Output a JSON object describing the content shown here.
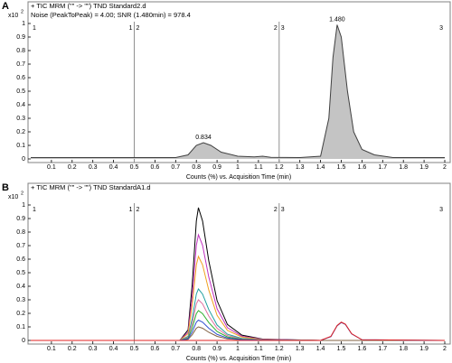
{
  "chart_data": [
    {
      "type": "line",
      "panel_label": "A",
      "title": "+ TIC MRM (\"\" -> \"\") TND Standard2.d",
      "subtitle": "Noise (PeakToPeak) = 4.00; SNR (1.480min) = 978.4",
      "title_color": "#000000",
      "y_scale_label": "x10",
      "y_scale_exponent": 2,
      "xlabel": "Counts (%) vs. Acquisition Time (min)",
      "xlim": [
        0,
        2
      ],
      "ylim": [
        0,
        1
      ],
      "xticks": [
        0.1,
        0.2,
        0.3,
        0.4,
        0.5,
        0.6,
        0.7,
        0.8,
        0.9,
        1,
        1.1,
        1.2,
        1.3,
        1.4,
        1.5,
        1.6,
        1.7,
        1.8,
        1.9,
        2
      ],
      "yticks": [
        0,
        0.1,
        0.2,
        0.3,
        0.4,
        0.5,
        0.6,
        0.7,
        0.8,
        0.9,
        1
      ],
      "segments": [
        {
          "label": "1",
          "range": [
            0,
            0.5
          ]
        },
        {
          "label": "2",
          "range": [
            0.5,
            1.2
          ]
        },
        {
          "label": "3",
          "range": [
            1.2,
            2
          ]
        }
      ],
      "x": [
        0,
        0.7,
        0.76,
        0.8,
        0.834,
        0.87,
        0.92,
        1.0,
        1.08,
        1.12,
        1.16,
        1.3,
        1.4,
        1.44,
        1.46,
        1.48,
        1.5,
        1.53,
        1.56,
        1.6,
        1.66,
        1.75,
        2
      ],
      "series": [
        {
          "color": "#404040",
          "fill": "#c4c4c4",
          "values": [
            0.01,
            0.01,
            0.03,
            0.1,
            0.12,
            0.1,
            0.05,
            0.02,
            0.015,
            0.02,
            0.012,
            0.01,
            0.02,
            0.3,
            0.75,
            0.99,
            0.9,
            0.5,
            0.2,
            0.07,
            0.03,
            0.01,
            0.01
          ]
        }
      ],
      "peak_labels": [
        {
          "x": 0.834,
          "y": 0.12,
          "label": "0.834"
        },
        {
          "x": 1.48,
          "y": 0.99,
          "label": "1.480"
        }
      ]
    },
    {
      "type": "line",
      "panel_label": "B",
      "title": "+ TIC MRM (\"\" -> \"\") TND StandardA1.d",
      "title_color": "#e02020",
      "y_scale_label": "x10",
      "y_scale_exponent": 2,
      "xlabel": "Counts (%) vs. Acquisition Time (min)",
      "xlim": [
        0,
        2
      ],
      "ylim": [
        0,
        1
      ],
      "xticks": [
        0.1,
        0.2,
        0.3,
        0.4,
        0.5,
        0.6,
        0.7,
        0.8,
        0.9,
        1,
        1.1,
        1.2,
        1.3,
        1.4,
        1.5,
        1.6,
        1.7,
        1.8,
        1.9,
        2
      ],
      "yticks": [
        0,
        0.1,
        0.2,
        0.3,
        0.4,
        0.5,
        0.6,
        0.7,
        0.8,
        0.9,
        1
      ],
      "segments": [
        {
          "label": "1",
          "range": [
            0,
            0.5
          ]
        },
        {
          "label": "2",
          "range": [
            0.5,
            1.2
          ]
        },
        {
          "label": "3",
          "range": [
            1.2,
            2
          ]
        }
      ],
      "x": [
        0,
        0.72,
        0.76,
        0.78,
        0.8,
        0.81,
        0.83,
        0.86,
        0.9,
        0.95,
        1.02,
        1.12,
        1.4,
        1.45,
        1.48,
        1.5,
        1.52,
        1.55,
        1.6,
        2
      ],
      "series": [
        {
          "color": "#000000",
          "values": [
            0,
            0,
            0.078,
            0.412,
            0.882,
            0.98,
            0.882,
            0.588,
            0.294,
            0.118,
            0.039,
            0.01,
            0,
            0,
            0,
            0,
            0,
            0,
            0,
            0
          ]
        },
        {
          "color": "#c030c0",
          "values": [
            0,
            0,
            0.062,
            0.328,
            0.702,
            0.78,
            0.702,
            0.468,
            0.234,
            0.094,
            0.031,
            0.008,
            0,
            0,
            0,
            0,
            0,
            0,
            0,
            0
          ]
        },
        {
          "color": "#f0a020",
          "values": [
            0,
            0,
            0.05,
            0.26,
            0.558,
            0.62,
            0.558,
            0.372,
            0.186,
            0.074,
            0.025,
            0.006,
            0,
            0,
            0,
            0,
            0,
            0,
            0,
            0
          ]
        },
        {
          "color": "#20a0a0",
          "values": [
            0,
            0,
            0.03,
            0.16,
            0.342,
            0.38,
            0.342,
            0.228,
            0.114,
            0.046,
            0.015,
            0.004,
            0,
            0,
            0,
            0,
            0,
            0,
            0,
            0
          ]
        },
        {
          "color": "#e070a0",
          "values": [
            0,
            0,
            0.024,
            0.126,
            0.27,
            0.3,
            0.27,
            0.18,
            0.09,
            0.036,
            0.012,
            0.003,
            0,
            0,
            0,
            0,
            0,
            0,
            0,
            0
          ]
        },
        {
          "color": "#30b030",
          "values": [
            0,
            0,
            0.018,
            0.092,
            0.198,
            0.22,
            0.198,
            0.132,
            0.066,
            0.026,
            0.009,
            0.002,
            0,
            0,
            0,
            0,
            0,
            0,
            0,
            0
          ]
        },
        {
          "color": "#806040",
          "values": [
            0,
            0,
            0.008,
            0.042,
            0.09,
            0.1,
            0.09,
            0.06,
            0.03,
            0.012,
            0.004,
            0.001,
            0,
            0,
            0,
            0,
            0,
            0,
            0,
            0
          ]
        },
        {
          "color": "#3050d0",
          "values": [
            0,
            0,
            0.012,
            0.063,
            0.135,
            0.15,
            0.135,
            0.09,
            0.045,
            0.018,
            0.006,
            0.002,
            0,
            0.028,
            0.108,
            0.132,
            0.118,
            0.048,
            0.005,
            0
          ]
        },
        {
          "color": "#e02020",
          "values": [
            0,
            0,
            0,
            0,
            0,
            0,
            0,
            0,
            0,
            0,
            0,
            0,
            0,
            0.03,
            0.11,
            0.135,
            0.12,
            0.05,
            0.005,
            0
          ]
        }
      ]
    }
  ]
}
